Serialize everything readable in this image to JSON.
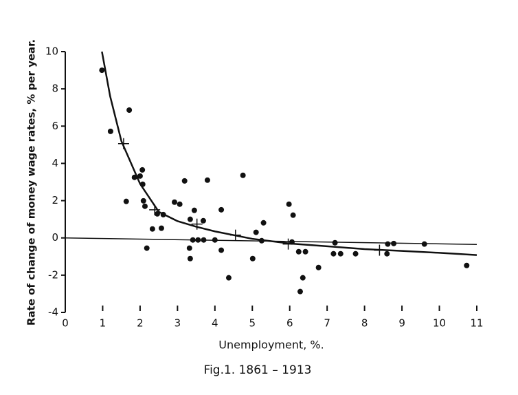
{
  "chart_data": {
    "type": "scatter",
    "ylabel": "Rate of change of money wage rates, % per year.",
    "xlabel": "Unemployment,   %.",
    "caption": "Fig.1. 1861 – 1913",
    "xlim": [
      0,
      11
    ],
    "ylim": [
      -4,
      10
    ],
    "xticks": [
      0,
      1,
      2,
      3,
      4,
      5,
      6,
      7,
      8,
      9,
      10,
      11
    ],
    "yticks": [
      -4,
      -2,
      0,
      2,
      4,
      6,
      8,
      10
    ],
    "color": "#111111",
    "points": {
      "x": [
        0.98,
        1.21,
        1.71,
        1.63,
        1.85,
        2.0,
        2.06,
        2.07,
        2.09,
        2.13,
        2.18,
        2.33,
        2.46,
        2.62,
        2.57,
        2.92,
        3.06,
        3.19,
        3.34,
        3.32,
        3.34,
        3.45,
        3.41,
        3.69,
        3.55,
        3.8,
        3.7,
        4.0,
        4.17,
        4.17,
        4.37,
        4.75,
        5.01,
        5.1,
        5.25,
        5.3,
        5.98,
        6.09,
        6.06,
        6.24,
        6.42,
        6.35,
        6.28,
        6.77,
        7.17,
        7.21,
        7.36,
        7.76,
        8.62,
        8.6,
        8.78,
        9.6,
        10.73
      ],
      "y": [
        9.0,
        5.72,
        6.86,
        1.96,
        3.25,
        3.32,
        3.65,
        2.88,
        1.99,
        1.7,
        -0.55,
        0.48,
        1.29,
        1.25,
        0.52,
        1.92,
        1.81,
        3.06,
        1.0,
        -0.55,
        -1.11,
        1.48,
        -0.11,
        0.92,
        -0.11,
        3.1,
        -0.11,
        -0.11,
        1.51,
        -0.66,
        -2.14,
        3.36,
        -1.11,
        0.3,
        -0.15,
        0.81,
        1.81,
        1.22,
        -0.22,
        -0.74,
        -0.74,
        -2.14,
        -2.88,
        -1.59,
        -0.85,
        -0.26,
        -0.85,
        -0.85,
        -0.33,
        -0.85,
        -0.3,
        -0.33,
        -1.48
      ]
    },
    "crosses": {
      "x": [
        1.56,
        2.39,
        3.52,
        4.55,
        5.96,
        8.4
      ],
      "y": [
        5.06,
        1.51,
        0.74,
        0.15,
        -0.33,
        -0.66
      ]
    },
    "curve": {
      "x": [
        0.98,
        1.2,
        1.5,
        2.0,
        2.5,
        3.0,
        3.5,
        4.0,
        5.0,
        6.0,
        7.0,
        8.0,
        9.0,
        10.0,
        11.0
      ],
      "y": [
        10,
        7.6,
        5.2,
        2.9,
        1.4,
        0.9,
        0.6,
        0.35,
        -0.05,
        -0.3,
        -0.45,
        -0.6,
        -0.7,
        -0.8,
        -0.92
      ]
    },
    "zero_line": {
      "x": [
        0,
        11
      ],
      "y": [
        0,
        -0.35
      ]
    }
  }
}
